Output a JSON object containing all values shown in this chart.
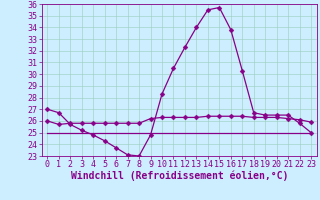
{
  "xlabel": "Windchill (Refroidissement éolien,°C)",
  "background_color": "#cceeff",
  "line_color": "#880088",
  "grid_color": "#99ccbb",
  "x": [
    0,
    1,
    2,
    3,
    4,
    5,
    6,
    7,
    8,
    9,
    10,
    11,
    12,
    13,
    14,
    15,
    16,
    17,
    18,
    19,
    20,
    21,
    22,
    23
  ],
  "y_main": [
    27.0,
    26.7,
    25.7,
    25.2,
    24.8,
    24.3,
    23.7,
    23.1,
    23.0,
    24.8,
    28.3,
    30.5,
    32.3,
    34.0,
    35.5,
    35.7,
    33.8,
    30.3,
    26.7,
    26.5,
    26.5,
    26.5,
    25.8,
    25.0
  ],
  "y_flat_upper": [
    26.0,
    25.7,
    25.8,
    25.8,
    25.8,
    25.8,
    25.8,
    25.8,
    25.8,
    26.2,
    26.3,
    26.3,
    26.3,
    26.3,
    26.4,
    26.4,
    26.4,
    26.4,
    26.3,
    26.3,
    26.3,
    26.2,
    26.1,
    25.9
  ],
  "y_flat_lower": [
    25.0,
    25.0,
    25.0,
    25.0,
    25.0,
    25.0,
    25.0,
    25.0,
    25.0,
    25.0,
    25.0,
    25.0,
    25.0,
    25.0,
    25.0,
    25.0,
    25.0,
    25.0,
    25.0,
    25.0,
    25.0,
    25.0,
    25.0,
    25.0
  ],
  "ylim": [
    23,
    36
  ],
  "xlim_min": -0.5,
  "xlim_max": 23.5,
  "yticks": [
    23,
    24,
    25,
    26,
    27,
    28,
    29,
    30,
    31,
    32,
    33,
    34,
    35,
    36
  ],
  "xticks": [
    0,
    1,
    2,
    3,
    4,
    5,
    6,
    7,
    8,
    9,
    10,
    11,
    12,
    13,
    14,
    15,
    16,
    17,
    18,
    19,
    20,
    21,
    22,
    23
  ],
  "markersize": 2.5,
  "linewidth": 0.9,
  "fontsize_tick": 6,
  "fontsize_xlabel": 7
}
